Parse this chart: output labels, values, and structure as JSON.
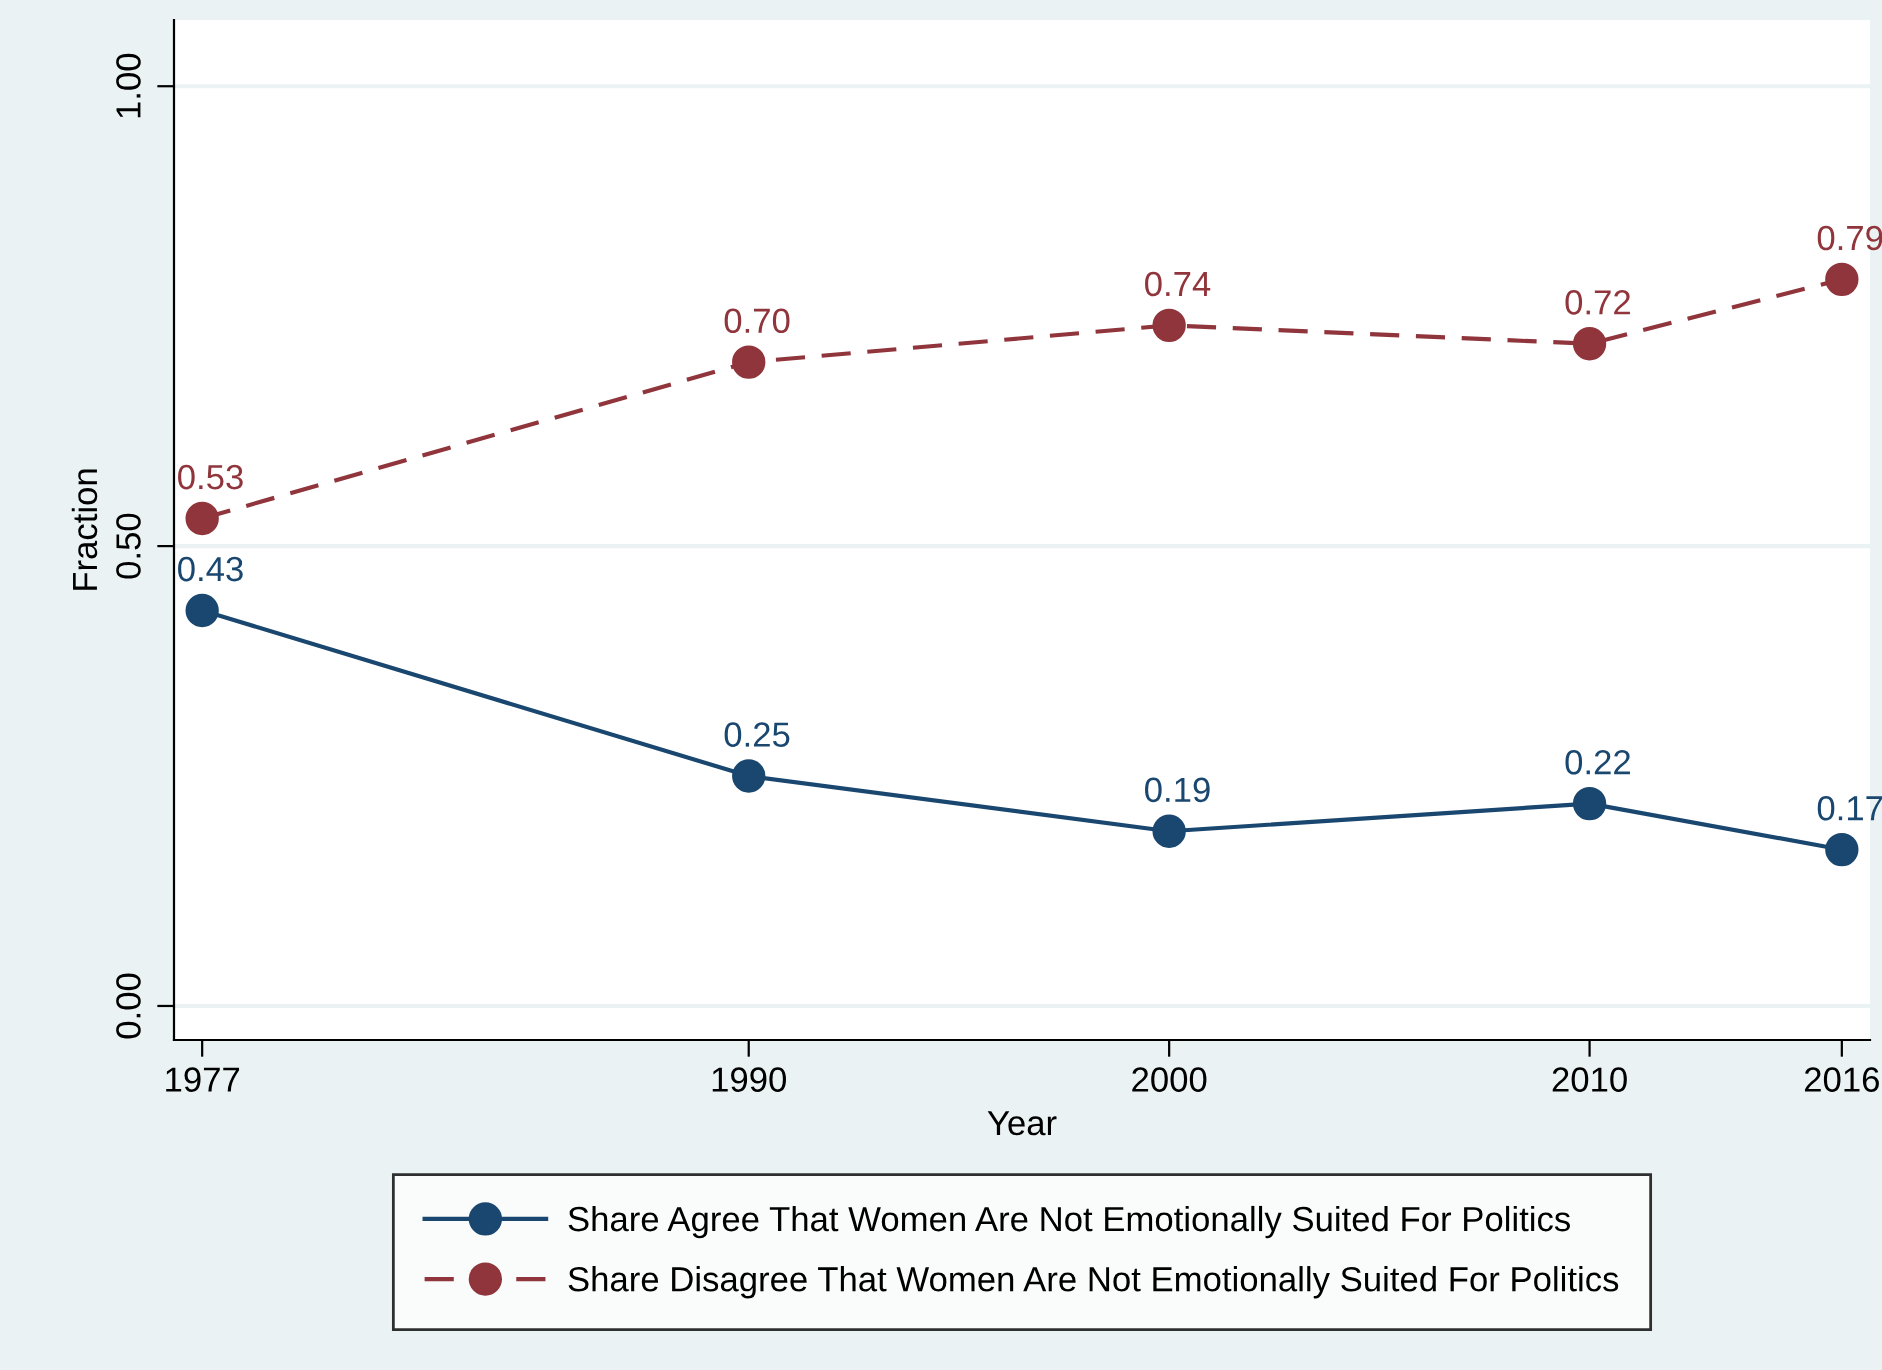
{
  "chart_data": {
    "type": "line",
    "xlabel": "Year",
    "ylabel": "Fraction",
    "x": [
      1977,
      1990,
      2000,
      2010,
      2016
    ],
    "series": [
      {
        "name": "Share Agree That Women Are Not Emotionally Suited For Politics",
        "color": "#1a476f",
        "line_style": "solid",
        "values": [
          0.43,
          0.25,
          0.19,
          0.22,
          0.17
        ],
        "value_labels": [
          "0.43",
          "0.25",
          "0.19",
          "0.22",
          "0.17"
        ]
      },
      {
        "name": "Share Disagree That Women Are Not Emotionally Suited For Politics",
        "color": "#90353b",
        "line_style": "dashed",
        "values": [
          0.53,
          0.7,
          0.74,
          0.72,
          0.79
        ],
        "value_labels": [
          "0.53",
          "0.70",
          "0.74",
          "0.72",
          "0.79"
        ]
      }
    ],
    "xlim": [
      1976.33,
      2016.67
    ],
    "ylim": [
      -0.037,
      1.072
    ],
    "xticks": [
      1977,
      1990,
      2000,
      2010,
      2016
    ],
    "yticks": [
      {
        "value": 0,
        "label": "0.00"
      },
      {
        "value": 0.5,
        "label": "0.50"
      },
      {
        "value": 1,
        "label": "1.00"
      }
    ],
    "grid": "y",
    "marker": "circle",
    "legend": "bottom"
  }
}
